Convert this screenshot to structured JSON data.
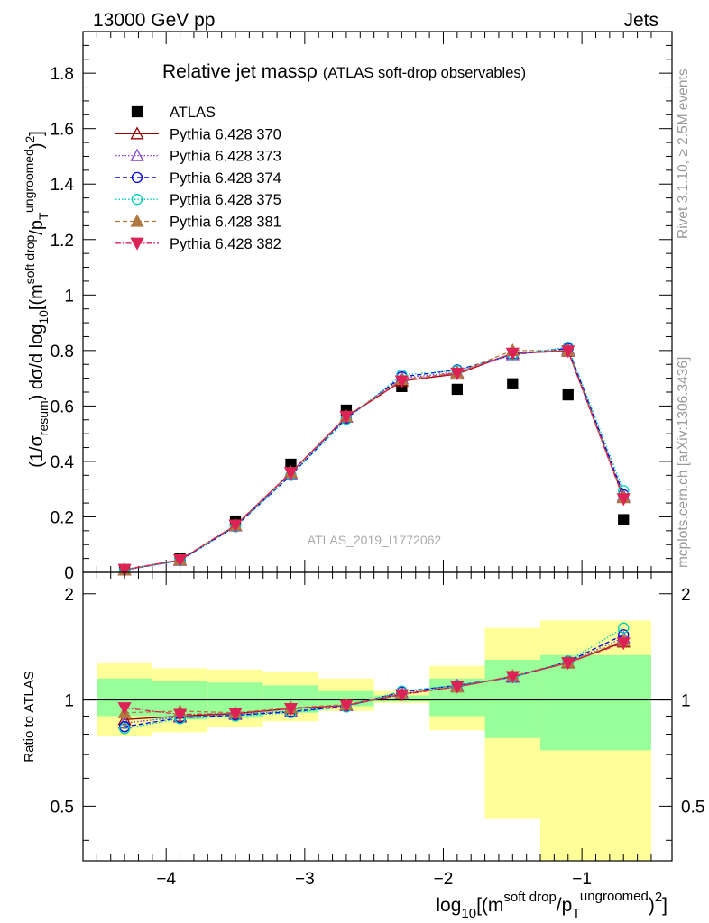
{
  "header": {
    "left": "13000 GeV pp",
    "right": "Jets"
  },
  "side": {
    "rivet": "Rivet 3.1.10, ≥ 2.5M events",
    "mcplots": "mcplots.cern.ch [arXiv:1306.3436]"
  },
  "watermark": "ATLAS_2019_I1772062",
  "colors": {
    "band_outer": "#ffff99",
    "band_inner": "#99ff99"
  },
  "chart_data": [
    {
      "type": "scatter",
      "title_main": "Relative jet massρ",
      "title_sub": "(ATLAS soft-drop observables)",
      "ylabel": "(1/σ_resum) dσ/d log10[(m^soft drop/pT^ungroomed)^2]",
      "xlim": [
        -4.6,
        -0.35
      ],
      "ylim": [
        0,
        1.95
      ],
      "yticks": [
        0,
        0.2,
        0.4,
        0.6,
        0.8,
        1,
        1.2,
        1.4,
        1.6,
        1.8
      ],
      "x": [
        -4.3,
        -3.9,
        -3.5,
        -3.1,
        -2.7,
        -2.3,
        -1.9,
        -1.5,
        -1.1,
        -0.7
      ],
      "series": [
        {
          "name": "ATLAS",
          "color": "#000000",
          "marker": "square",
          "dash": "",
          "values": [
            0.01,
            0.05,
            0.185,
            0.39,
            0.585,
            0.67,
            0.66,
            0.68,
            0.64,
            0.19
          ]
        },
        {
          "name": "Pythia 6.428 370",
          "color": "#990000",
          "marker": "triangle-open",
          "dash": "",
          "values": [
            0.009,
            0.044,
            0.168,
            0.36,
            0.56,
            0.69,
            0.715,
            0.79,
            0.798,
            0.27
          ]
        },
        {
          "name": "Pythia 6.428 373",
          "color": "#7f3fcf",
          "marker": "triangle-open",
          "dash": "1.5,2",
          "values": [
            0.009,
            0.045,
            0.168,
            0.355,
            0.56,
            0.7,
            0.722,
            0.785,
            0.805,
            0.275
          ]
        },
        {
          "name": "Pythia 6.428 374",
          "color": "#0000dd",
          "marker": "circle-open",
          "dash": "5,3",
          "values": [
            0.008,
            0.043,
            0.165,
            0.35,
            0.555,
            0.705,
            0.73,
            0.785,
            0.808,
            0.28
          ]
        },
        {
          "name": "Pythia 6.428 375",
          "color": "#00ccbb",
          "marker": "circle-open",
          "dash": "1.5,2",
          "values": [
            0.008,
            0.043,
            0.166,
            0.35,
            0.552,
            0.712,
            0.728,
            0.785,
            0.812,
            0.295
          ]
        },
        {
          "name": "Pythia 6.428 381",
          "color": "#b07840",
          "marker": "triangle-filled",
          "dash": "5,3",
          "values": [
            0.009,
            0.046,
            0.17,
            0.36,
            0.562,
            0.695,
            0.72,
            0.8,
            0.8,
            0.27
          ]
        },
        {
          "name": "Pythia 6.428 382",
          "color": "#dd2255",
          "marker": "triangle-down-filled",
          "dash": "6,2,1.5,2",
          "values": [
            0.01,
            0.045,
            0.17,
            0.36,
            0.562,
            0.69,
            0.718,
            0.79,
            0.798,
            0.265
          ]
        }
      ]
    },
    {
      "type": "scatter",
      "xlabel": "log10[(m^soft drop/pT^ungroomed)^2]",
      "ylabel": "Ratio to ATLAS",
      "xlim": [
        -4.6,
        -0.35
      ],
      "ylim": [
        0.35,
        2.3
      ],
      "yticks": [
        0.5,
        1,
        2
      ],
      "ytick_labels": [
        "0.5",
        "1",
        "2"
      ],
      "xticks": [
        -4,
        -3,
        -2,
        -1
      ],
      "xtick_labels": [
        "−4",
        "−3",
        "−2",
        "−1"
      ],
      "x": [
        -4.3,
        -3.9,
        -3.5,
        -3.1,
        -2.7,
        -2.3,
        -1.9,
        -1.5,
        -1.1,
        -0.7
      ],
      "bands": [
        {
          "x0": -4.5,
          "x1": -4.1,
          "outer": [
            0.79,
            1.27
          ],
          "inner": [
            0.9,
            1.15
          ]
        },
        {
          "x0": -4.1,
          "x1": -3.7,
          "outer": [
            0.81,
            1.23
          ],
          "inner": [
            0.88,
            1.13
          ]
        },
        {
          "x0": -3.7,
          "x1": -3.3,
          "outer": [
            0.84,
            1.22
          ],
          "inner": [
            0.89,
            1.12
          ]
        },
        {
          "x0": -3.3,
          "x1": -2.9,
          "outer": [
            0.87,
            1.2
          ],
          "inner": [
            0.92,
            1.1
          ]
        },
        {
          "x0": -2.9,
          "x1": -2.5,
          "outer": [
            0.93,
            1.15
          ],
          "inner": [
            0.96,
            1.06
          ]
        },
        {
          "x0": -2.5,
          "x1": -2.1,
          "outer": [
            0.98,
            1.06
          ],
          "inner": [
            0.99,
            1.03
          ]
        },
        {
          "x0": -2.1,
          "x1": -1.7,
          "outer": [
            0.82,
            1.25
          ],
          "inner": [
            0.9,
            1.15
          ]
        },
        {
          "x0": -1.7,
          "x1": -1.3,
          "outer": [
            0.46,
            1.6
          ],
          "inner": [
            0.78,
            1.3
          ]
        },
        {
          "x0": -1.3,
          "x1": -0.9,
          "outer": [
            0.3,
            1.68
          ],
          "inner": [
            0.72,
            1.34
          ]
        },
        {
          "x0": -0.9,
          "x1": -0.5,
          "outer": [
            0.3,
            1.68
          ],
          "inner": [
            0.72,
            1.34
          ]
        }
      ],
      "series": [
        {
          "name": "Pythia 6.428 370",
          "color": "#990000",
          "marker": "triangle-open",
          "dash": "",
          "values": [
            0.88,
            0.9,
            0.915,
            0.945,
            0.965,
            1.04,
            1.09,
            1.165,
            1.275,
            1.46
          ]
        },
        {
          "name": "Pythia 6.428 373",
          "color": "#7f3fcf",
          "marker": "triangle-open",
          "dash": "1.5,2",
          "values": [
            0.86,
            0.895,
            0.91,
            0.93,
            0.965,
            1.05,
            1.1,
            1.16,
            1.28,
            1.5
          ]
        },
        {
          "name": "Pythia 6.428 374",
          "color": "#0000dd",
          "marker": "circle-open",
          "dash": "5,3",
          "values": [
            0.84,
            0.89,
            0.905,
            0.925,
            0.96,
            1.055,
            1.1,
            1.16,
            1.285,
            1.53
          ]
        },
        {
          "name": "Pythia 6.428 375",
          "color": "#00ccbb",
          "marker": "circle-open",
          "dash": "1.5,2",
          "values": [
            0.83,
            0.885,
            0.9,
            0.92,
            0.955,
            1.06,
            1.1,
            1.16,
            1.29,
            1.6
          ]
        },
        {
          "name": "Pythia 6.428 381",
          "color": "#b07840",
          "marker": "triangle-filled",
          "dash": "5,3",
          "values": [
            0.92,
            0.93,
            0.92,
            0.95,
            0.97,
            1.04,
            1.09,
            1.17,
            1.28,
            1.47
          ]
        },
        {
          "name": "Pythia 6.428 382",
          "color": "#dd2255",
          "marker": "triangle-down-filled",
          "dash": "6,2,1.5,2",
          "values": [
            0.95,
            0.91,
            0.915,
            0.945,
            0.965,
            1.035,
            1.09,
            1.165,
            1.275,
            1.45
          ]
        }
      ]
    }
  ]
}
